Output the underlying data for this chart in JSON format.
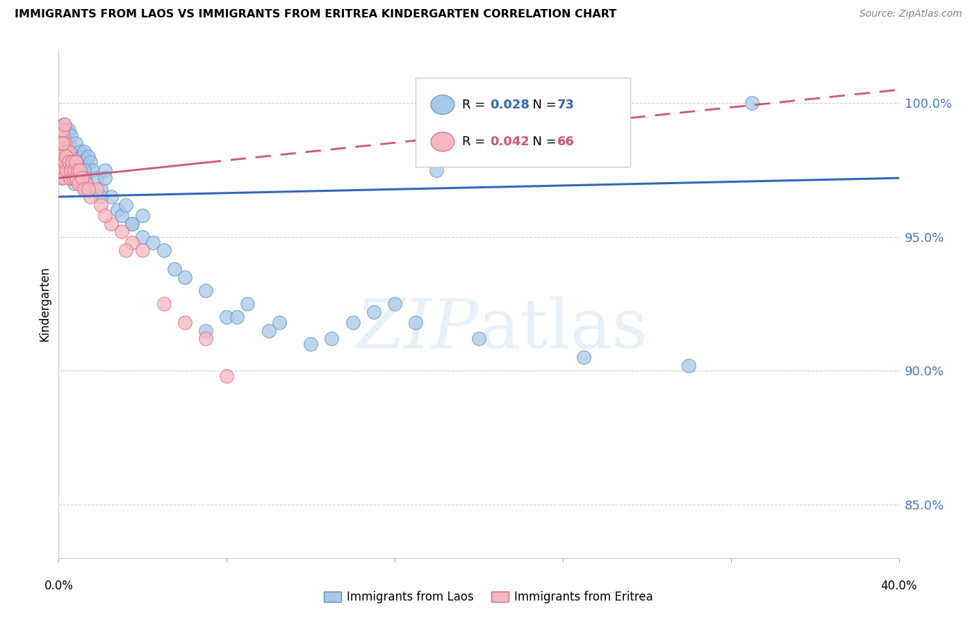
{
  "title": "IMMIGRANTS FROM LAOS VS IMMIGRANTS FROM ERITREA KINDERGARTEN CORRELATION CHART",
  "source": "Source: ZipAtlas.com",
  "ylabel": "Kindergarten",
  "y_ticks": [
    85.0,
    90.0,
    95.0,
    100.0
  ],
  "y_tick_labels": [
    "85.0%",
    "90.0%",
    "95.0%",
    "100.0%"
  ],
  "x_range": [
    0.0,
    40.0
  ],
  "y_range": [
    83.0,
    102.0
  ],
  "legend_laos": "Immigrants from Laos",
  "legend_eritrea": "Immigrants from Eritrea",
  "R_laos": 0.028,
  "N_laos": 73,
  "R_eritrea": 0.042,
  "N_eritrea": 66,
  "color_laos": "#a8c8e8",
  "color_eritrea": "#f4b8c0",
  "color_laos_edge": "#5590c0",
  "color_eritrea_edge": "#e06080",
  "color_laos_line": "#3366bb",
  "color_eritrea_line": "#cc5577",
  "background_color": "#ffffff",
  "grid_color": "#cccccc",
  "laos_x": [
    0.1,
    0.15,
    0.2,
    0.2,
    0.25,
    0.3,
    0.3,
    0.35,
    0.4,
    0.4,
    0.5,
    0.5,
    0.6,
    0.6,
    0.7,
    0.8,
    0.8,
    0.9,
    1.0,
    1.0,
    1.1,
    1.2,
    1.2,
    1.3,
    1.4,
    1.5,
    1.6,
    1.8,
    2.0,
    2.2,
    2.5,
    2.8,
    3.0,
    3.2,
    3.5,
    4.0,
    4.5,
    5.0,
    5.5,
    6.0,
    7.0,
    8.0,
    9.0,
    10.0,
    12.0,
    14.0,
    16.0,
    18.0,
    20.0,
    25.0,
    30.0,
    33.0,
    0.5,
    0.6,
    0.65,
    0.7,
    0.75,
    0.8,
    1.0,
    1.1,
    1.15,
    1.2,
    1.25,
    2.0,
    2.2,
    3.5,
    4.0,
    7.0,
    8.5,
    10.5,
    13.0,
    15.0,
    17.0
  ],
  "laos_y": [
    97.8,
    98.2,
    99.0,
    98.5,
    99.2,
    98.8,
    99.0,
    98.6,
    98.3,
    99.0,
    99.0,
    98.5,
    98.0,
    98.8,
    97.8,
    98.5,
    97.5,
    98.0,
    98.2,
    97.5,
    98.0,
    97.6,
    98.2,
    97.9,
    98.0,
    97.8,
    97.5,
    97.2,
    96.8,
    97.5,
    96.5,
    96.0,
    95.8,
    96.2,
    95.5,
    95.0,
    94.8,
    94.5,
    93.8,
    93.5,
    93.0,
    92.0,
    92.5,
    91.5,
    91.0,
    91.8,
    92.5,
    97.5,
    91.2,
    90.5,
    90.2,
    100.0,
    98.0,
    97.5,
    97.8,
    97.2,
    97.0,
    97.8,
    97.5,
    97.2,
    97.0,
    97.5,
    97.2,
    96.5,
    97.2,
    95.5,
    95.8,
    91.5,
    92.0,
    91.8,
    91.2,
    92.2,
    91.8
  ],
  "eritrea_x": [
    0.05,
    0.08,
    0.1,
    0.12,
    0.15,
    0.18,
    0.2,
    0.2,
    0.22,
    0.25,
    0.28,
    0.3,
    0.3,
    0.32,
    0.35,
    0.4,
    0.4,
    0.45,
    0.5,
    0.5,
    0.55,
    0.6,
    0.65,
    0.7,
    0.75,
    0.8,
    0.85,
    0.9,
    1.0,
    1.1,
    1.2,
    1.3,
    1.5,
    1.8,
    2.0,
    2.5,
    3.0,
    3.5,
    4.0,
    5.0,
    6.0,
    7.0,
    8.0,
    0.1,
    0.15,
    0.2,
    0.25,
    0.3,
    0.35,
    0.4,
    0.5,
    0.55,
    0.6,
    0.65,
    0.7,
    0.75,
    0.8,
    0.85,
    0.9,
    0.95,
    1.0,
    1.1,
    1.2,
    1.4,
    2.2,
    3.2
  ],
  "eritrea_y": [
    97.5,
    98.2,
    97.8,
    98.5,
    97.2,
    98.8,
    97.5,
    99.0,
    98.2,
    97.8,
    98.5,
    98.0,
    99.2,
    97.5,
    97.8,
    98.2,
    97.5,
    97.8,
    97.5,
    98.2,
    97.2,
    97.8,
    97.5,
    97.2,
    97.5,
    97.8,
    97.2,
    97.5,
    97.0,
    97.2,
    96.8,
    97.0,
    96.5,
    96.8,
    96.2,
    95.5,
    95.2,
    94.8,
    94.5,
    92.5,
    91.8,
    91.2,
    89.8,
    98.0,
    97.5,
    98.5,
    97.2,
    97.8,
    98.0,
    97.5,
    97.8,
    97.2,
    97.5,
    97.8,
    97.2,
    97.5,
    97.8,
    97.2,
    97.5,
    97.0,
    97.5,
    97.2,
    96.8,
    96.8,
    95.8,
    94.5
  ],
  "laos_line_x": [
    0.0,
    40.0
  ],
  "laos_line_y": [
    96.5,
    97.2
  ],
  "eritrea_line_x": [
    0.0,
    40.0
  ],
  "eritrea_line_y": [
    97.2,
    100.5
  ]
}
